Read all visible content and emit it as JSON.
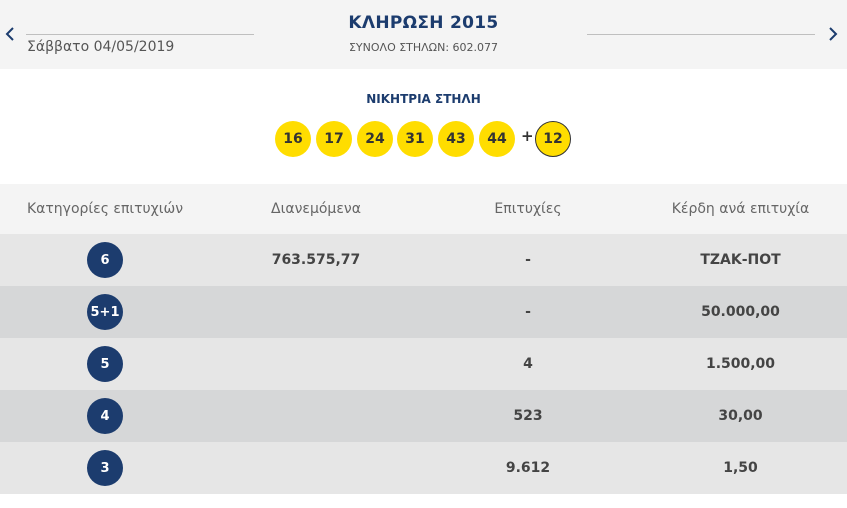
{
  "header": {
    "date": "Σάββατο 04/05/2019",
    "draw_title": "ΚΛΗΡΩΣΗ 2015",
    "total_columns": "ΣΥΝΟΛΟ ΣΤΗΛΩΝ: 602.077",
    "prev_icon": "chevron-left-icon",
    "next_icon": "chevron-right-icon"
  },
  "winning": {
    "title": "ΝΙΚΗΤΡΙΑ ΣΤΗΛΗ",
    "numbers": [
      "16",
      "17",
      "24",
      "31",
      "43",
      "44"
    ],
    "plus": "+",
    "joker": "12",
    "ball_color": "#ffdd00"
  },
  "table": {
    "headers": [
      "Κατηγορίες επιτυχιών",
      "Διανεμόμενα",
      "Επιτυχίες",
      "Κέρδη ανά επιτυχία"
    ],
    "rows": [
      {
        "category": "6",
        "distributed": "763.575,77",
        "winners": "-",
        "prize": "ΤΖΑΚ-ΠΟΤ"
      },
      {
        "category": "5+1",
        "distributed": "",
        "winners": "-",
        "prize": "50.000,00"
      },
      {
        "category": "5",
        "distributed": "",
        "winners": "4",
        "prize": "1.500,00"
      },
      {
        "category": "4",
        "distributed": "",
        "winners": "523",
        "prize": "30,00"
      },
      {
        "category": "3",
        "distributed": "",
        "winners": "9.612",
        "prize": "1,50"
      }
    ],
    "badge_color": "#1c3c6e"
  }
}
